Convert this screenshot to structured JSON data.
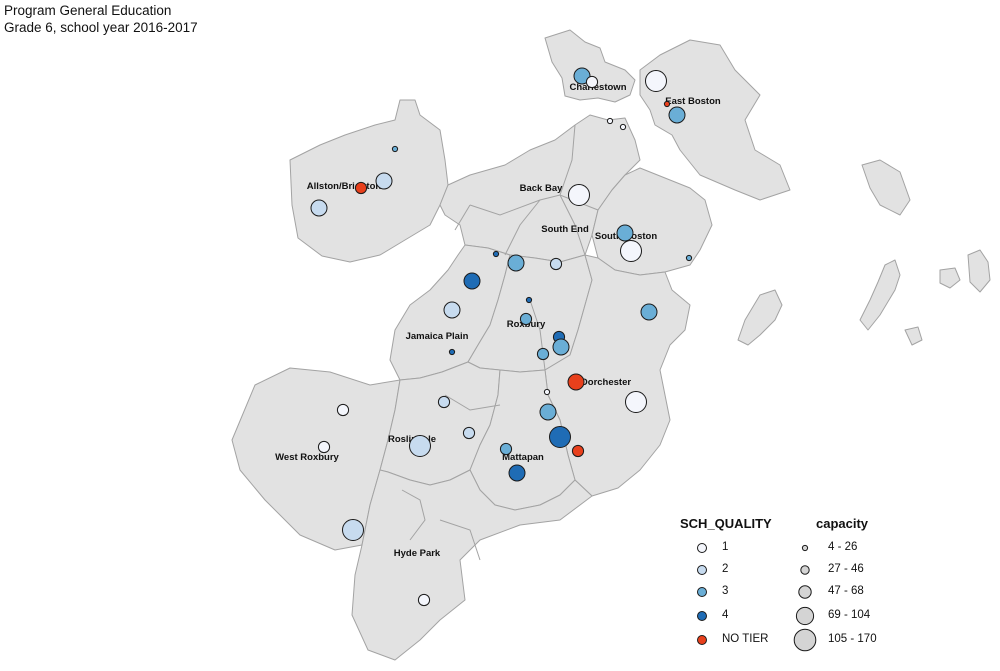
{
  "title": {
    "line1": "Program General  Education",
    "line2": "Grade 6, school year 2016-2017"
  },
  "map": {
    "fill_color": "#e2e2e2",
    "border_color": "#a3a3a3",
    "neighborhood_labels": [
      "Charlestown",
      "East Boston",
      "Allston/Brighton",
      "Back Bay",
      "South End",
      "South Boston",
      "Roxbury",
      "Jamaica Plain",
      "Dorchester",
      "West Roxbury",
      "Roslindale",
      "Mattapan",
      "Hyde Park"
    ]
  },
  "legend": {
    "quality_title": "SCH_QUALITY",
    "capacity_title": "capacity",
    "quality_items": [
      {
        "label": "1",
        "color": "#f4f6fc"
      },
      {
        "label": "2",
        "color": "#c7dbef"
      },
      {
        "label": "3",
        "color": "#6aaed6"
      },
      {
        "label": "4",
        "color": "#1f6cb5"
      },
      {
        "label": "NO TIER",
        "color": "#e8401c"
      }
    ],
    "capacity_items": [
      {
        "label": "4 - 26"
      },
      {
        "label": "27 - 46"
      },
      {
        "label": "47 - 68"
      },
      {
        "label": "69 - 104"
      },
      {
        "label": "105 - 170"
      }
    ]
  },
  "schools": [
    {
      "neighborhood": "Charlestown",
      "quality": "3",
      "capacity": "47 - 68"
    },
    {
      "neighborhood": "Charlestown",
      "quality": "1",
      "capacity": "27 - 46"
    },
    {
      "neighborhood": "Charlestown",
      "quality": "1",
      "capacity": "4 - 26"
    },
    {
      "neighborhood": "Charlestown",
      "quality": "1",
      "capacity": "4 - 26"
    },
    {
      "neighborhood": "East Boston",
      "quality": "1",
      "capacity": "69 - 104"
    },
    {
      "neighborhood": "East Boston",
      "quality": "NO TIER",
      "capacity": "4 - 26"
    },
    {
      "neighborhood": "East Boston",
      "quality": "3",
      "capacity": "47 - 68"
    },
    {
      "neighborhood": "Allston/Brighton",
      "quality": "3",
      "capacity": "4 - 26"
    },
    {
      "neighborhood": "Allston/Brighton",
      "quality": "2",
      "capacity": "47 - 68"
    },
    {
      "neighborhood": "Allston/Brighton",
      "quality": "NO TIER",
      "capacity": "27 - 46"
    },
    {
      "neighborhood": "Allston/Brighton",
      "quality": "2",
      "capacity": "47 - 68"
    },
    {
      "neighborhood": "Back Bay",
      "quality": "1",
      "capacity": "69 - 104"
    },
    {
      "neighborhood": "South Boston",
      "quality": "3",
      "capacity": "47 - 68"
    },
    {
      "neighborhood": "South Boston",
      "quality": "1",
      "capacity": "69 - 104"
    },
    {
      "neighborhood": "South Boston",
      "quality": "3",
      "capacity": "4 - 26"
    },
    {
      "neighborhood": "Jamaica Plain",
      "quality": "4",
      "capacity": "4 - 26"
    },
    {
      "neighborhood": "South End",
      "quality": "3",
      "capacity": "47 - 68"
    },
    {
      "neighborhood": "South End",
      "quality": "2",
      "capacity": "27 - 46"
    },
    {
      "neighborhood": "Jamaica Plain",
      "quality": "4",
      "capacity": "47 - 68"
    },
    {
      "neighborhood": "Jamaica Plain",
      "quality": "2",
      "capacity": "47 - 68"
    },
    {
      "neighborhood": "Roxbury",
      "quality": "4",
      "capacity": "4 - 26"
    },
    {
      "neighborhood": "Roxbury",
      "quality": "3",
      "capacity": "27 - 46"
    },
    {
      "neighborhood": "Roxbury",
      "quality": "4",
      "capacity": "27 - 46"
    },
    {
      "neighborhood": "Roxbury",
      "quality": "3",
      "capacity": "47 - 68"
    },
    {
      "neighborhood": "Roxbury",
      "quality": "3",
      "capacity": "27 - 46"
    },
    {
      "neighborhood": "Dorchester",
      "quality": "3",
      "capacity": "47 - 68"
    },
    {
      "neighborhood": "Jamaica Plain",
      "quality": "4",
      "capacity": "4 - 26"
    },
    {
      "neighborhood": "Dorchester",
      "quality": "NO TIER",
      "capacity": "47 - 68"
    },
    {
      "neighborhood": "Dorchester",
      "quality": "1",
      "capacity": "4 - 26"
    },
    {
      "neighborhood": "Dorchester",
      "quality": "1",
      "capacity": "69 - 104"
    },
    {
      "neighborhood": "Dorchester",
      "quality": "3",
      "capacity": "47 - 68"
    },
    {
      "neighborhood": "Dorchester",
      "quality": "4",
      "capacity": "69 - 104"
    },
    {
      "neighborhood": "Dorchester",
      "quality": "NO TIER",
      "capacity": "27 - 46"
    },
    {
      "neighborhood": "Mattapan",
      "quality": "3",
      "capacity": "27 - 46"
    },
    {
      "neighborhood": "Mattapan",
      "quality": "4",
      "capacity": "47 - 68"
    },
    {
      "neighborhood": "West Roxbury",
      "quality": "1",
      "capacity": "27 - 46"
    },
    {
      "neighborhood": "West Roxbury",
      "quality": "1",
      "capacity": "27 - 46"
    },
    {
      "neighborhood": "Roslindale",
      "quality": "2",
      "capacity": "27 - 46"
    },
    {
      "neighborhood": "Roslindale",
      "quality": "2",
      "capacity": "69 - 104"
    },
    {
      "neighborhood": "Roslindale",
      "quality": "2",
      "capacity": "27 - 46"
    },
    {
      "neighborhood": "West Roxbury",
      "quality": "2",
      "capacity": "69 - 104"
    },
    {
      "neighborhood": "Hyde Park",
      "quality": "1",
      "capacity": "27 - 46"
    }
  ]
}
